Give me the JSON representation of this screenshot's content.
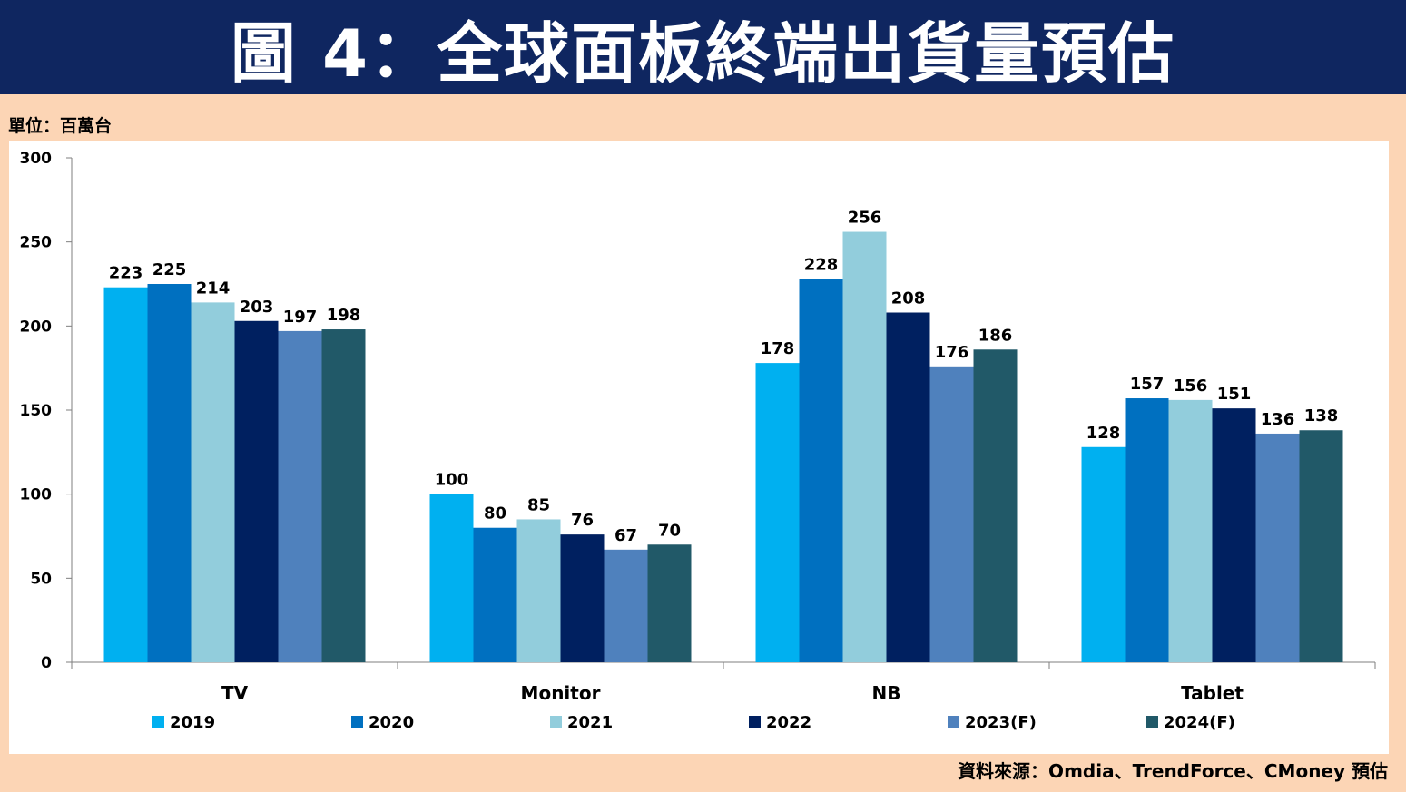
{
  "header": {
    "title": "圖 4：全球面板終端出貨量預估"
  },
  "unit_label": "單位：百萬台",
  "source_label": "資料來源：Omdia、TrendForce、CMoney 預估",
  "chart_data": {
    "type": "bar",
    "categories": [
      "TV",
      "Monitor",
      "NB",
      "Tablet"
    ],
    "series": [
      {
        "name": "2019",
        "color": "#00b0f0",
        "values": [
          223,
          100,
          178,
          128
        ]
      },
      {
        "name": "2020",
        "color": "#0070c0",
        "values": [
          225,
          80,
          228,
          157
        ]
      },
      {
        "name": "2021",
        "color": "#92cddc",
        "values": [
          214,
          85,
          256,
          156
        ]
      },
      {
        "name": "2022",
        "color": "#002060",
        "values": [
          203,
          76,
          208,
          151
        ]
      },
      {
        "name": "2023(F)",
        "color": "#4f81bd",
        "values": [
          197,
          67,
          176,
          136
        ]
      },
      {
        "name": "2024(F)",
        "color": "#215968",
        "values": [
          198,
          70,
          186,
          138
        ]
      }
    ],
    "ylim": [
      0,
      300
    ],
    "yticks": [
      0,
      50,
      100,
      150,
      200,
      250,
      300
    ],
    "grid": false,
    "legend": "bottom",
    "data_labels": true
  }
}
